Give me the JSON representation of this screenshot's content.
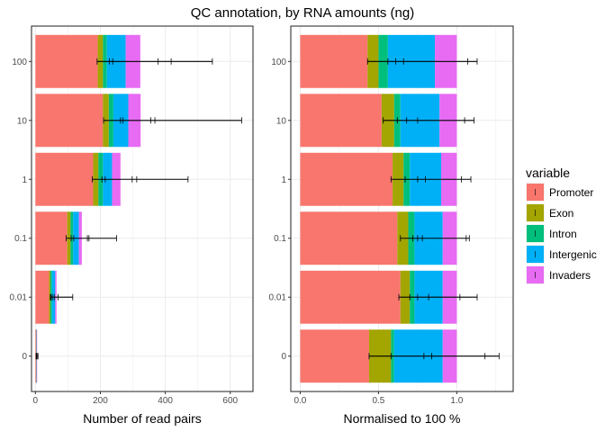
{
  "title": "QC annotation, by RNA amounts (ng)",
  "legend": {
    "title": "variable",
    "position": "right",
    "items": [
      "Promoter",
      "Exon",
      "Intron",
      "Intergenic",
      "Invaders"
    ]
  },
  "colors": {
    "Promoter": "#F8766D",
    "Exon": "#A3A500",
    "Intron": "#00BF7D",
    "Intergenic": "#00B0F6",
    "Invaders": "#E76BF3"
  },
  "chart_data": [
    {
      "type": "bar",
      "orientation": "horizontal",
      "stacked": true,
      "xlabel": "Number of read pairs",
      "ylabel": "",
      "xlim": [
        -12,
        670
      ],
      "xticks": [
        "0",
        "200",
        "400",
        "600"
      ],
      "xtick_values": [
        0,
        200,
        400,
        600
      ],
      "grid": true,
      "categories": [
        "0",
        "0.01",
        "0.1",
        "1",
        "10",
        "100"
      ],
      "series": [
        {
          "name": "Promoter",
          "values": [
            2,
            42,
            98,
            178,
            208,
            192
          ]
        },
        {
          "name": "Exon",
          "values": [
            0.5,
            4,
            10,
            16,
            18,
            16
          ]
        },
        {
          "name": "Intron",
          "values": [
            0.5,
            5,
            8,
            14,
            14,
            12
          ]
        },
        {
          "name": "Intergenic",
          "values": [
            0.5,
            10,
            18,
            28,
            46,
            58
          ]
        },
        {
          "name": "Invaders",
          "values": [
            0.5,
            4,
            9,
            26,
            38,
            45
          ]
        }
      ],
      "error_bars": [
        {
          "category": "0",
          "min": 2,
          "max": 8,
          "marks": [
            3,
            4,
            5
          ]
        },
        {
          "category": "0.01",
          "min": 46,
          "max": 115,
          "marks": [
            48,
            52,
            58,
            70
          ]
        },
        {
          "category": "0.1",
          "min": 95,
          "max": 250,
          "marks": [
            110,
            118,
            160,
            165
          ]
        },
        {
          "category": "1",
          "min": 175,
          "max": 470,
          "marks": [
            205,
            215,
            298,
            312
          ]
        },
        {
          "category": "10",
          "min": 210,
          "max": 635,
          "marks": [
            262,
            270,
            355,
            368
          ]
        },
        {
          "category": "100",
          "min": 190,
          "max": 545,
          "marks": [
            228,
            238,
            378,
            418
          ]
        }
      ]
    },
    {
      "type": "bar",
      "orientation": "horizontal",
      "stacked": true,
      "xlabel": "Normalised to 100 %",
      "ylabel": "",
      "xlim": [
        -0.06,
        1.36
      ],
      "xticks": [
        "0.0",
        "0.5",
        "1.0"
      ],
      "xtick_values": [
        0,
        0.5,
        1.0
      ],
      "grid": true,
      "categories": [
        "0",
        "0.01",
        "0.1",
        "1",
        "10",
        "100"
      ],
      "series": [
        {
          "name": "Promoter",
          "values": [
            0.44,
            0.64,
            0.62,
            0.59,
            0.52,
            0.43
          ]
        },
        {
          "name": "Exon",
          "values": [
            0.14,
            0.06,
            0.07,
            0.07,
            0.08,
            0.07
          ]
        },
        {
          "name": "Intron",
          "values": [
            0.02,
            0.03,
            0.04,
            0.04,
            0.04,
            0.06
          ]
        },
        {
          "name": "Intergenic",
          "values": [
            0.31,
            0.18,
            0.18,
            0.2,
            0.25,
            0.3
          ]
        },
        {
          "name": "Invaders",
          "values": [
            0.09,
            0.09,
            0.09,
            0.1,
            0.11,
            0.14
          ]
        }
      ],
      "error_bars": [
        {
          "category": "0",
          "min": 0.44,
          "max": 1.27,
          "marks": [
            0.58,
            0.79,
            0.84,
            1.18
          ]
        },
        {
          "category": "0.01",
          "min": 0.63,
          "max": 1.13,
          "marks": [
            0.7,
            0.75,
            0.82,
            1.02
          ]
        },
        {
          "category": "0.1",
          "min": 0.64,
          "max": 1.08,
          "marks": [
            0.72,
            0.75,
            0.78,
            1.06
          ]
        },
        {
          "category": "1",
          "min": 0.58,
          "max": 1.09,
          "marks": [
            0.67,
            0.75,
            0.8,
            1.03
          ]
        },
        {
          "category": "10",
          "min": 0.53,
          "max": 1.11,
          "marks": [
            0.62,
            0.68,
            0.75,
            1.05
          ]
        },
        {
          "category": "100",
          "min": 0.43,
          "max": 1.13,
          "marks": [
            0.56,
            0.61,
            0.66,
            1.07
          ]
        }
      ]
    }
  ]
}
